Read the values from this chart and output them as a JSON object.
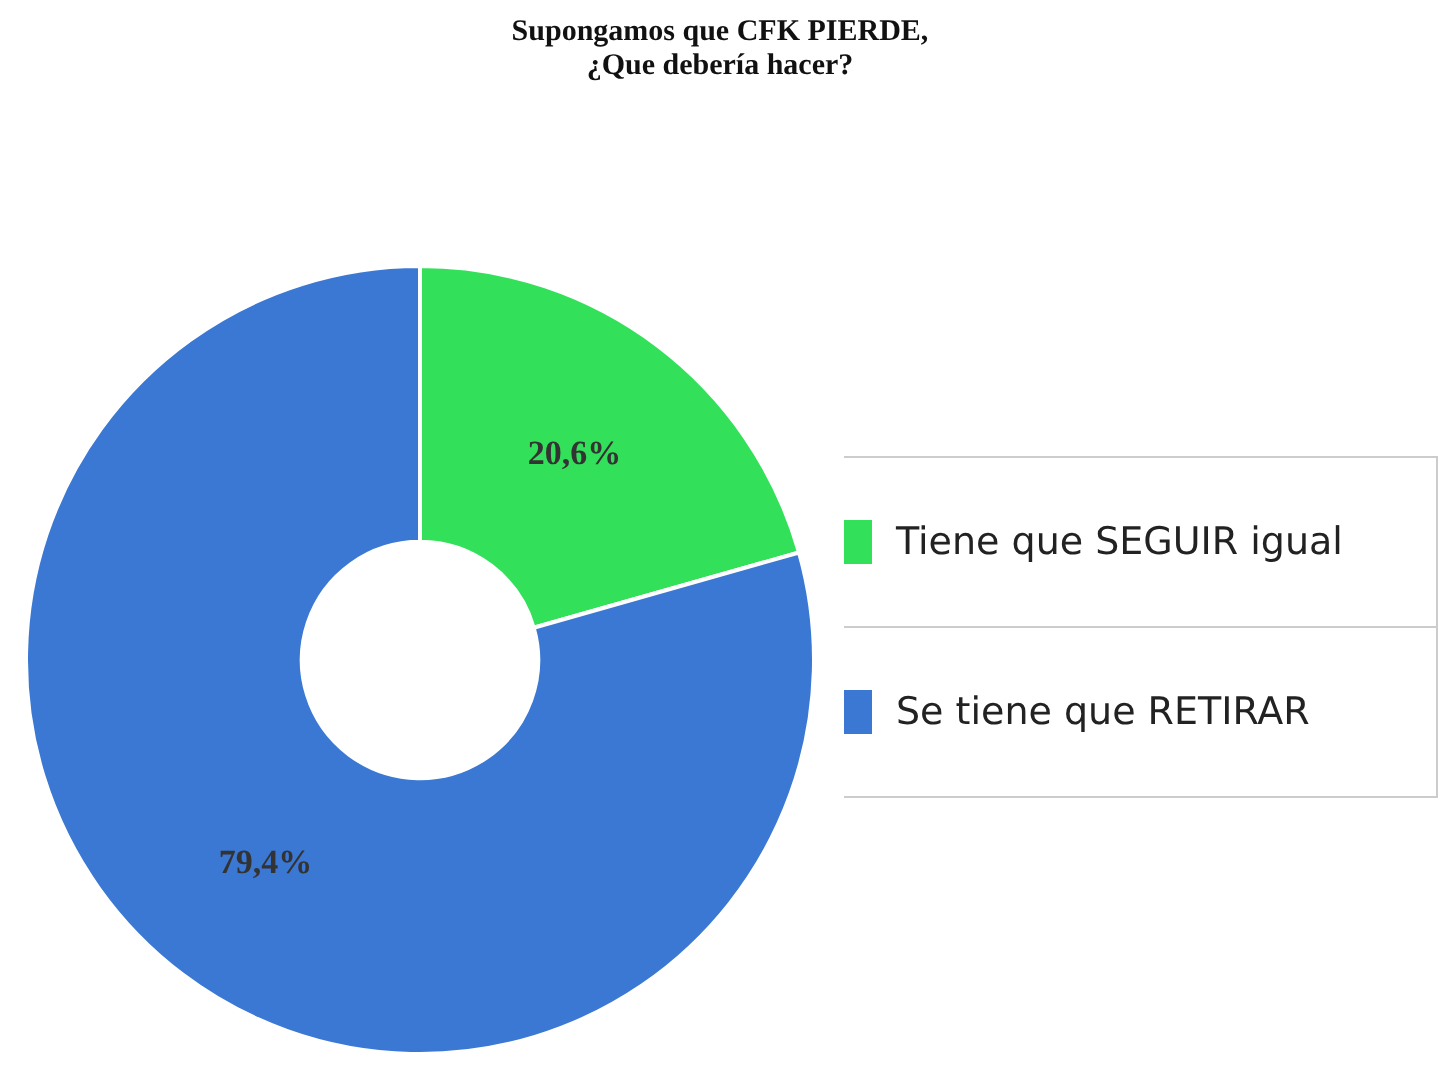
{
  "chart_data": {
    "type": "donut",
    "title": "Supongamos que CFK PIERDE,\n¿Que debería hacer?",
    "categories": [
      "Tiene que SEGUIR igual",
      "Se tiene que RETIRAR"
    ],
    "values": [
      20.6,
      79.4
    ],
    "colors": [
      "#33e05a",
      "#3a78d4"
    ],
    "value_labels": [
      "20,6%",
      "79,4%"
    ],
    "legend": "right"
  }
}
